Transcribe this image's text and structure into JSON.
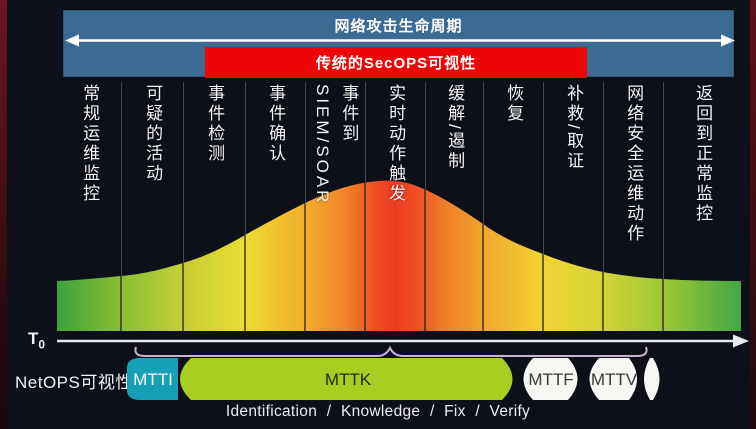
{
  "header": {
    "lifecycle_title": "网络攻击生命周期",
    "secops_title": "传统的SecOPS可视性"
  },
  "phases": [
    {
      "label": "常规运维监控"
    },
    {
      "label": "可疑的活动"
    },
    {
      "label": "事件检测"
    },
    {
      "label": "事件确认"
    },
    {
      "label": "事件到\nSIEM/SOAR"
    },
    {
      "label": "实时动作触发"
    },
    {
      "label": "缓解/遏制"
    },
    {
      "label": "恢复"
    },
    {
      "label": "补救/取证"
    },
    {
      "label": "网络安全运维动作"
    },
    {
      "label": "返回到正常监控"
    }
  ],
  "curve": {
    "type": "area",
    "description": "bell-shaped severity curve over attack lifecycle, green-yellow-red-green gradient, peak at real-time action trigger phase",
    "gradient": [
      {
        "offset": 0,
        "color": "#3aa33c"
      },
      {
        "offset": 0.095,
        "color": "#8cbe33"
      },
      {
        "offset": 0.184,
        "color": "#c3cf36"
      },
      {
        "offset": 0.275,
        "color": "#ecdb35"
      },
      {
        "offset": 0.363,
        "color": "#f2ae2b"
      },
      {
        "offset": 0.421,
        "color": "#f18428"
      },
      {
        "offset": 0.465,
        "color": "#ee5124"
      },
      {
        "offset": 0.494,
        "color": "#ec3a20"
      },
      {
        "offset": 0.524,
        "color": "#ee4f24"
      },
      {
        "offset": 0.567,
        "color": "#f07e28"
      },
      {
        "offset": 0.623,
        "color": "#f2a52d"
      },
      {
        "offset": 0.711,
        "color": "#f3d334"
      },
      {
        "offset": 0.798,
        "color": "#d4d437"
      },
      {
        "offset": 0.886,
        "color": "#9cc835"
      },
      {
        "offset": 1,
        "color": "#45a743"
      }
    ]
  },
  "timeline": {
    "t0_label": "T",
    "t0_sub": "0",
    "netops_label": "NetOPS可视性",
    "segments": [
      {
        "label": "MTTI",
        "color": "#179fb5",
        "text_color": "#ffffff"
      },
      {
        "label": "MTTK",
        "color": "#a7ce20",
        "text_color": "#1e2a10"
      },
      {
        "label": "MTTF",
        "color": "#f6f6f2",
        "text_color": "#3a3a3a"
      },
      {
        "label": "MTTV",
        "color": "#f6f6f2",
        "text_color": "#3a3a3a"
      }
    ],
    "caption": "Identification / Knowledge / Fix / Verify"
  }
}
